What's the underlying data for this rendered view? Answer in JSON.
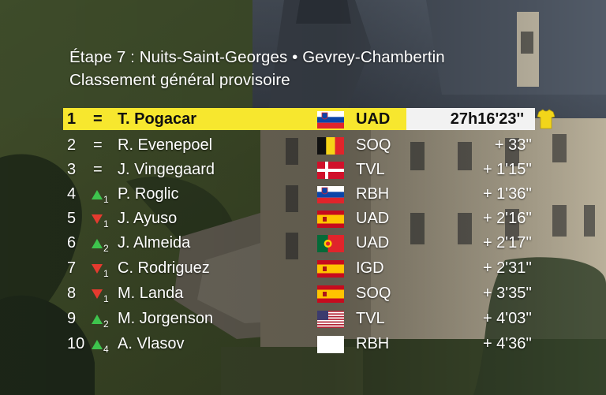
{
  "header": {
    "stage_line": "Étape 7 : Nuits-Saint-Georges •  Gevrey-Chambertin",
    "subtitle": "Classement général provisoire"
  },
  "colors": {
    "leader_bar": "#f7e72e",
    "up_arrow": "#3ec44d",
    "down_arrow": "#e53a2f"
  },
  "leader": {
    "pos": "1",
    "move": "=",
    "name": "T. Pogacar",
    "flag": "slovenia-flag",
    "team": "UAD",
    "time": "27h16'23''",
    "jersey_icon": "yellow-jersey-icon"
  },
  "rows": [
    {
      "pos": "2",
      "move": "=",
      "move_count": "",
      "name": "R. Evenepoel",
      "flag": "belgium-flag",
      "team": "SOQ",
      "gap": "+  33''"
    },
    {
      "pos": "3",
      "move": "=",
      "move_count": "",
      "name": "J. Vingegaard",
      "flag": "denmark-flag",
      "team": "TVL",
      "gap": "+ 1'15''"
    },
    {
      "pos": "4",
      "move": "up",
      "move_count": "1",
      "name": "P. Roglic",
      "flag": "slovenia-flag",
      "team": "RBH",
      "gap": "+ 1'36''"
    },
    {
      "pos": "5",
      "move": "down",
      "move_count": "1",
      "name": "J. Ayuso",
      "flag": "spain-flag",
      "team": "UAD",
      "gap": "+ 2'16''"
    },
    {
      "pos": "6",
      "move": "up",
      "move_count": "2",
      "name": "J. Almeida",
      "flag": "portugal-flag",
      "team": "UAD",
      "gap": "+ 2'17''"
    },
    {
      "pos": "7",
      "move": "down",
      "move_count": "1",
      "name": "C. Rodriguez",
      "flag": "spain-flag",
      "team": "IGD",
      "gap": "+ 2'31''"
    },
    {
      "pos": "8",
      "move": "down",
      "move_count": "1",
      "name": "M. Landa",
      "flag": "spain-flag",
      "team": "SOQ",
      "gap": "+ 3'35''"
    },
    {
      "pos": "9",
      "move": "up",
      "move_count": "2",
      "name": "M. Jorgenson",
      "flag": "usa-flag",
      "team": "TVL",
      "gap": "+ 4'03''"
    },
    {
      "pos": "10",
      "move": "up",
      "move_count": "4",
      "name": "A. Vlasov",
      "flag": "blank-flag",
      "team": "RBH",
      "gap": "+ 4'36''"
    }
  ]
}
